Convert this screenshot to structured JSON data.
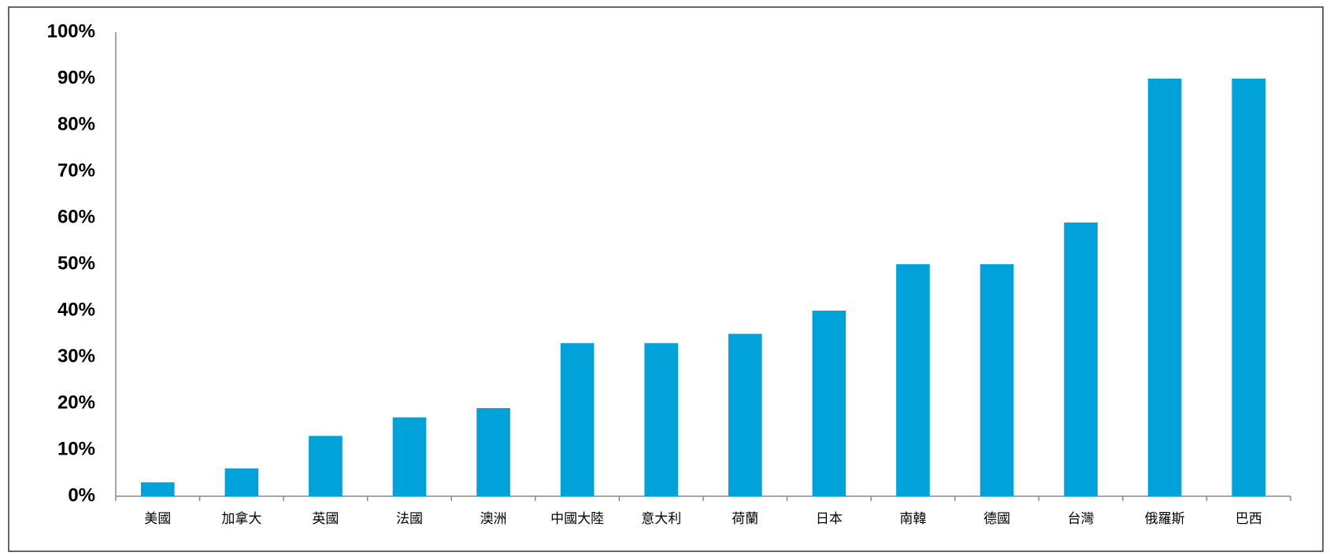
{
  "chart_data": {
    "type": "bar",
    "categories": [
      "美國",
      "加拿大",
      "英國",
      "法國",
      "澳洲",
      "中國大陸",
      "意大利",
      "荷蘭",
      "日本",
      "南韓",
      "德國",
      "台灣",
      "俄羅斯",
      "巴西"
    ],
    "values": [
      3,
      6,
      13,
      17,
      19,
      33,
      33,
      35,
      40,
      50,
      50,
      59,
      90,
      90
    ],
    "color": "#00a3d9",
    "ylim": [
      0,
      100
    ],
    "yticks": [
      {
        "value": 0,
        "label": "0%"
      },
      {
        "value": 10,
        "label": "10%"
      },
      {
        "value": 20,
        "label": "20%"
      },
      {
        "value": 30,
        "label": "30%"
      },
      {
        "value": 40,
        "label": "40%"
      },
      {
        "value": 50,
        "label": "50%"
      },
      {
        "value": 60,
        "label": "60%"
      },
      {
        "value": 70,
        "label": "70%"
      },
      {
        "value": 80,
        "label": "80%"
      },
      {
        "value": 90,
        "label": "90%"
      },
      {
        "value": 100,
        "label": "100%"
      }
    ],
    "grid": false
  }
}
